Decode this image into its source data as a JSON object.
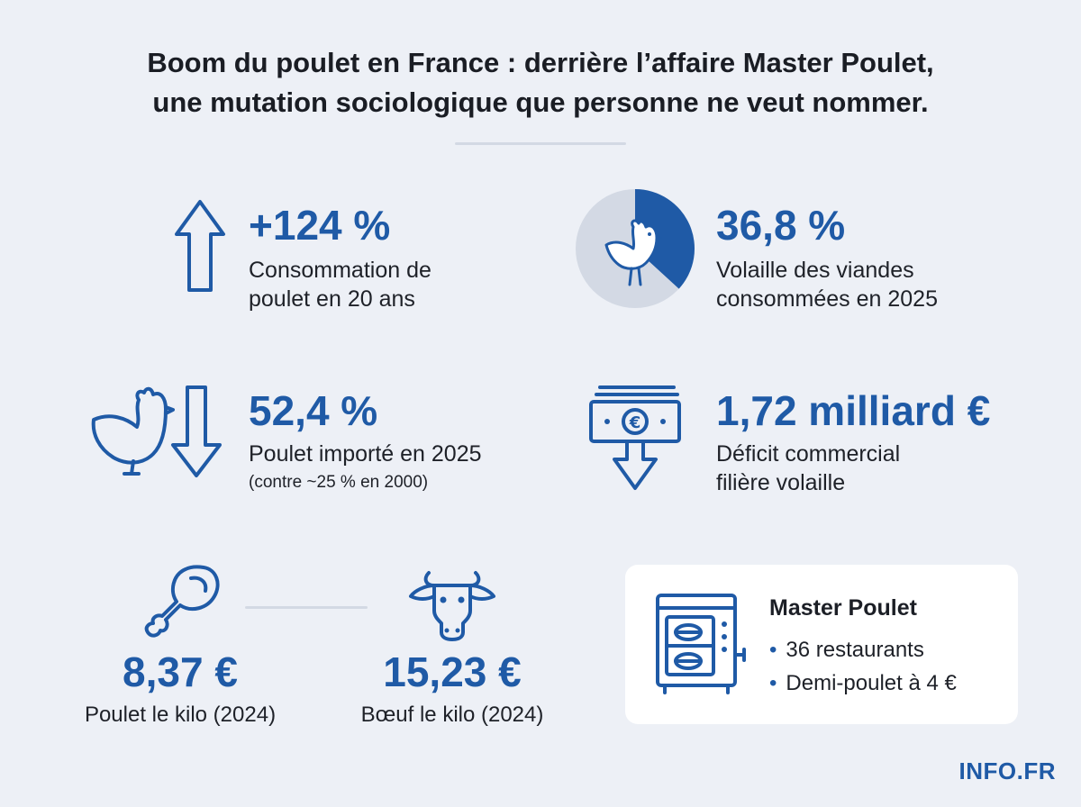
{
  "title": {
    "line1": "Boom du poulet en France : derrière l’affaire Master Poulet,",
    "line2": "une mutation sociologique que personne ne veut nommer."
  },
  "stats": {
    "consumption": {
      "value": "+124 %",
      "label_line1": "Consommation de",
      "label_line2": "poulet en 20 ans",
      "icon": "up-arrow-icon"
    },
    "poultry_share": {
      "value": "36,8 %",
      "label_line1": "Volaille des viandes",
      "label_line2": "consommées en 2025",
      "share_percent": 36.8,
      "icon": "chicken-pie-icon"
    },
    "imported": {
      "value": "52,4 %",
      "label": "Poulet importé en 2025",
      "note": "(contre ~25 % en 2000)",
      "icon": "chicken-down-arrow-icon"
    },
    "deficit": {
      "value": "1,72 milliard €",
      "label_line1": "Déficit commercial",
      "label_line2": "filière volaille",
      "icon": "euro-banknote-down-icon"
    }
  },
  "prices": {
    "chicken": {
      "value": "8,37 €",
      "label": "Poulet le kilo (2024)",
      "icon": "drumstick-icon"
    },
    "beef": {
      "value": "15,23 €",
      "label": "Bœuf le kilo (2024)",
      "icon": "cow-head-icon"
    }
  },
  "card": {
    "title": "Master Poulet",
    "items": [
      "36 restaurants",
      "Demi-poulet à 4 €"
    ],
    "icon": "rotisserie-oven-icon"
  },
  "brand": "INFO.FR",
  "colors": {
    "accent": "#1f5aa6",
    "background": "#edf0f6",
    "pie_rest": "#d3d9e4"
  }
}
